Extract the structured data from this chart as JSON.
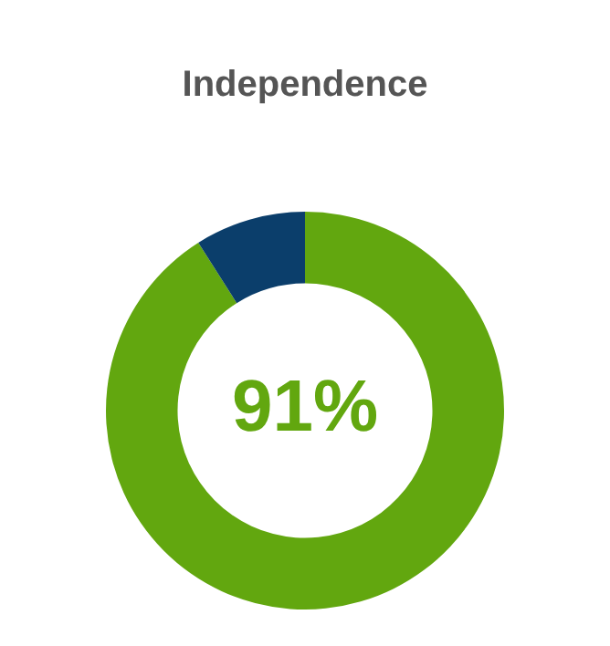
{
  "chart_data": {
    "type": "donut",
    "title": "Independence",
    "categories": [
      null,
      null
    ],
    "values": [
      91,
      9
    ],
    "colors": [
      "#62a70f",
      "#0b3e6b"
    ],
    "value_labels": [
      "91%",
      null
    ],
    "legend": false
  }
}
